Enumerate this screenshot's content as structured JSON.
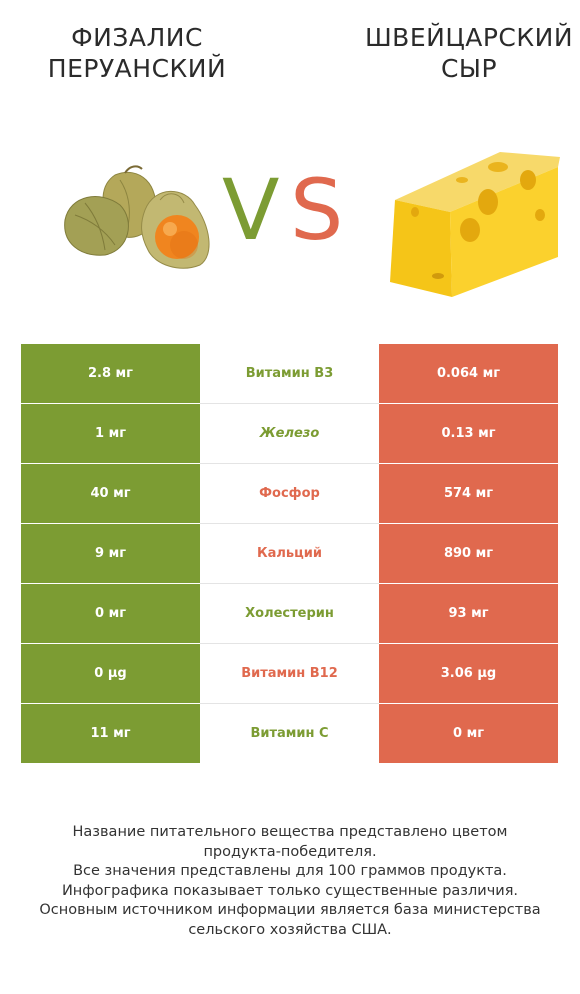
{
  "left_title": [
    "ФИЗАЛИС",
    "ПЕРУАНСКИЙ"
  ],
  "right_title": [
    "ШВЕЙЦАРСКИЙ",
    "СЫР"
  ],
  "vs": {
    "v": "V",
    "s": "S"
  },
  "colors": {
    "left": "#7c9c33",
    "right": "#e0694e"
  },
  "rows": [
    {
      "left": "2.8 мг",
      "nutrient": "Витамин B3",
      "right": "0.064 мг",
      "winner": "left"
    },
    {
      "left": "1 мг",
      "nutrient": "Железо",
      "right": "0.13 мг",
      "winner": "left"
    },
    {
      "left": "40 мг",
      "nutrient": "Фосфор",
      "right": "574 мг",
      "winner": "right"
    },
    {
      "left": "9 мг",
      "nutrient": "Кальций",
      "right": "890 мг",
      "winner": "right"
    },
    {
      "left": "0 мг",
      "nutrient": "Холестерин",
      "right": "93 мг",
      "winner": "left"
    },
    {
      "left": "0 µg",
      "nutrient": "Витамин B12",
      "right": "3.06 µg",
      "winner": "right"
    },
    {
      "left": "11 мг",
      "nutrient": "Витамин C",
      "right": "0 мг",
      "winner": "left"
    }
  ],
  "footer": [
    "Название питательного вещества представлено цветом",
    "продукта-победителя.",
    "Все значения представлены для 100 граммов продукта.",
    "Инфографика показывает только существенные различия.",
    "Основным источником информации является база министерства",
    "сельского хозяйства США."
  ]
}
